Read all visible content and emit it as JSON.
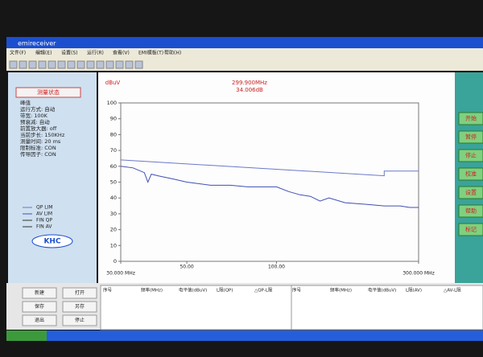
{
  "window": {
    "title": "emireceiver"
  },
  "menu": [
    "文件(F)",
    "编辑(E)",
    "设置(S)",
    "运行(R)",
    "查看(V)",
    "EMI模板(T)",
    "帮助(H)"
  ],
  "status_panel": {
    "title": "测量状态",
    "items": [
      "峰值",
      "运行方式: 自动",
      "带宽: 100K",
      "预衰减: 自动",
      "前置放大器: off",
      "当前步长: 150KHz",
      "测量时间: 20 ms",
      "限制标准: CON",
      "传导因子: CON"
    ]
  },
  "legend": [
    "QP LIM",
    "AV LIM",
    "FIN QP",
    "FIN AV"
  ],
  "logo": "KHC",
  "side_buttons": [
    "开始",
    "暂停",
    "停止",
    "校准",
    "设置",
    "帮助",
    "标记"
  ],
  "action_buttons": [
    "新建",
    "打开",
    "保存",
    "另存",
    "退出",
    "停止"
  ],
  "table_headers": [
    "序号",
    "频率(MHz)",
    "电平值(dBuV)",
    "L限(QP)",
    "△QP-L限",
    "序号",
    "频率(MHz)",
    "电平值(dBuV)",
    "L限(AV)",
    "△AV-L限"
  ],
  "chart_data": {
    "type": "line",
    "y_unit": "dBuV",
    "marker_frequency": "299.900MHz",
    "marker_level": "34.006dB",
    "xscale": "log",
    "xlim": [
      30,
      300
    ],
    "xticks": [
      {
        "value": 30,
        "label": "30.000 MHz"
      },
      {
        "value": 50,
        "label": "50.00"
      },
      {
        "value": 100,
        "label": "100.00"
      },
      {
        "value": 300,
        "label": "300.000 MHz"
      }
    ],
    "ylim": [
      0,
      100
    ],
    "yticks": [
      0,
      10,
      20,
      30,
      40,
      50,
      60,
      70,
      80,
      90,
      100
    ],
    "series": [
      {
        "color": "#6a78c8",
        "x": [
          30,
          230,
          230,
          300
        ],
        "values": [
          64,
          54,
          57,
          57
        ]
      },
      {
        "color": "#3f4fb5",
        "x": [
          30,
          33,
          36,
          37,
          38,
          40,
          45,
          50,
          55,
          60,
          70,
          80,
          90,
          100,
          110,
          120,
          130,
          140,
          150,
          170,
          200,
          230,
          260,
          280,
          300
        ],
        "values": [
          60,
          59,
          56,
          50,
          55,
          54,
          52,
          50,
          49,
          48,
          48,
          47,
          47,
          47,
          44,
          42,
          41,
          38,
          40,
          37,
          36,
          35,
          35,
          34,
          34
        ]
      }
    ]
  }
}
